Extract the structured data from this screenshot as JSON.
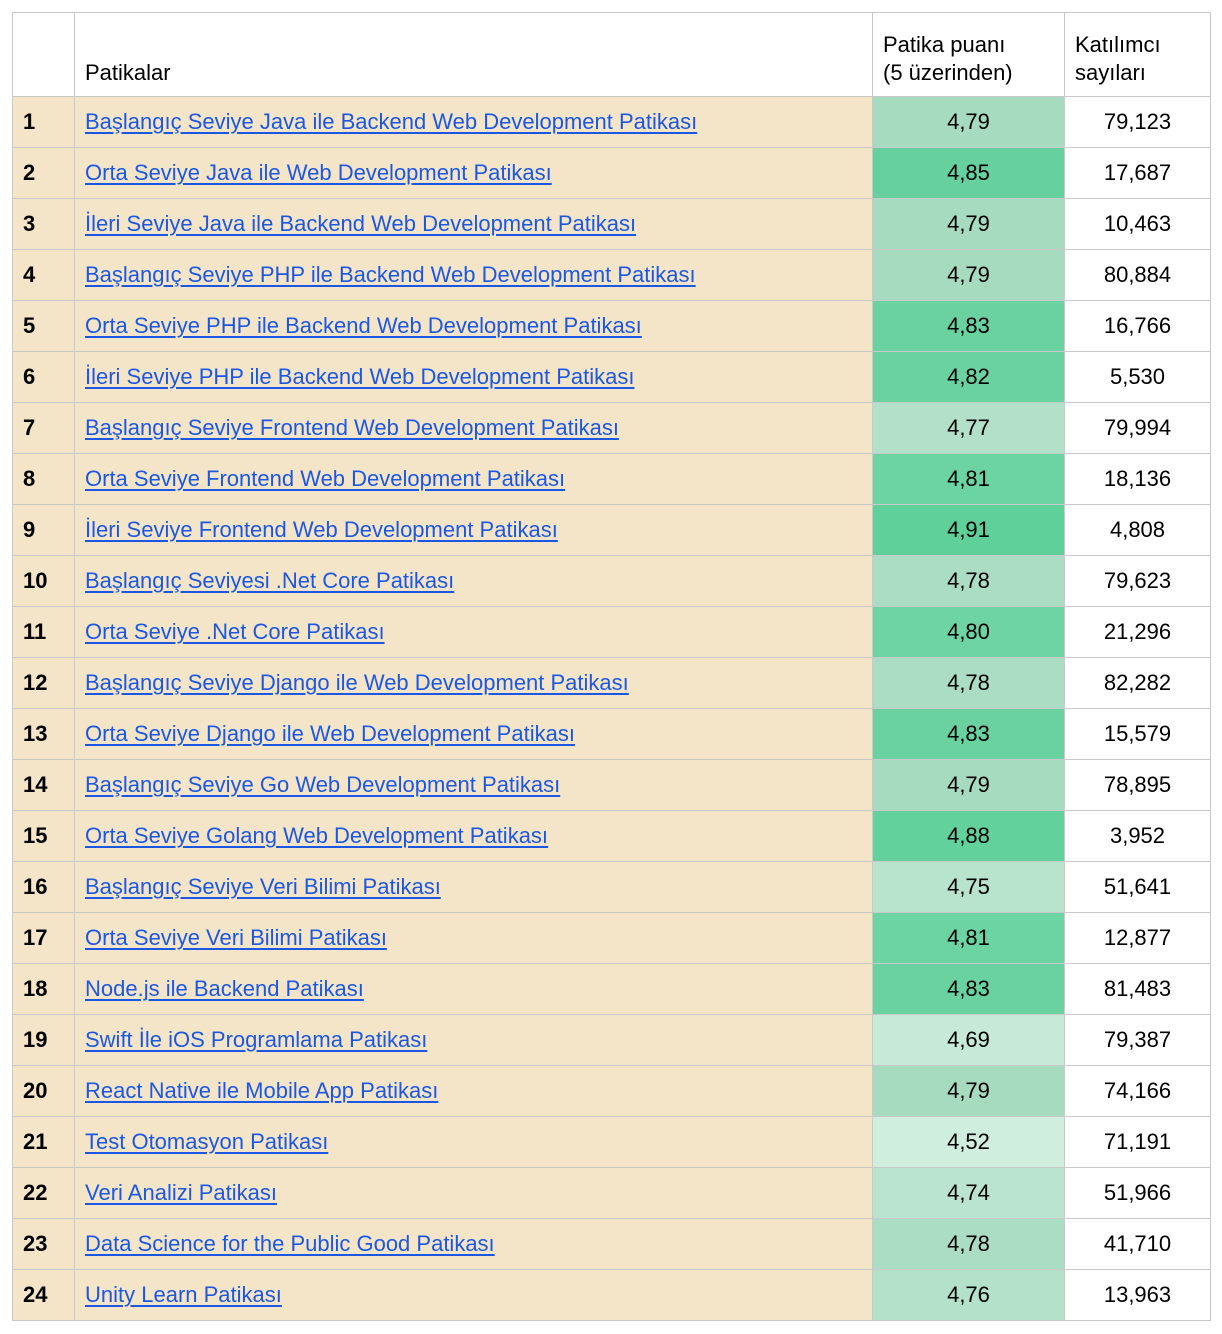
{
  "colors": {
    "row_bg": "#f5e5c8",
    "link_color": "#1b57e2",
    "border": "#c9c9c9",
    "score_scale_min": "#cfeede",
    "score_scale_max": "#5fd09a"
  },
  "table": {
    "headers": {
      "index": "",
      "path": "Patikalar",
      "score": "Patika puanı\n(5 üzerinden)",
      "participants": "Katılımcı\nsayıları"
    },
    "rows": [
      {
        "index": "1",
        "path": "Başlangıç Seviye Java ile Backend Web Development Patikası",
        "score": "4,79",
        "participants": "79,123",
        "score_bg": "#a7dbc0"
      },
      {
        "index": "2",
        "path": "Orta Seviye Java ile Web Development Patikası",
        "score": "4,85",
        "participants": "17,687",
        "score_bg": "#66d19e"
      },
      {
        "index": "3",
        "path": "İleri Seviye Java ile Backend Web Development Patikası",
        "score": "4,79",
        "participants": "10,463",
        "score_bg": "#a7dbc0"
      },
      {
        "index": "4",
        "path": "Başlangıç Seviye PHP ile Backend Web Development Patikası",
        "score": "4,79",
        "participants": "80,884",
        "score_bg": "#a7dbc0"
      },
      {
        "index": "5",
        "path": "Orta Seviye PHP ile Backend Web Development Patikası",
        "score": "4,83",
        "participants": "16,766",
        "score_bg": "#69d2a0"
      },
      {
        "index": "6",
        "path": "İleri Seviye PHP ile Backend Web Development Patikası",
        "score": "4,82",
        "participants": "5,530",
        "score_bg": "#6ad2a1"
      },
      {
        "index": "7",
        "path": "Başlangıç Seviye Frontend Web Development Patikası",
        "score": "4,77",
        "participants": "79,994",
        "score_bg": "#b2e0c9"
      },
      {
        "index": "8",
        "path": "Orta Seviye Frontend Web Development Patikası",
        "score": "4,81",
        "participants": "18,136",
        "score_bg": "#6cd3a2"
      },
      {
        "index": "9",
        "path": "İleri Seviye Frontend Web Development Patikası",
        "score": "4,91",
        "participants": "4,808",
        "score_bg": "#5fd09a"
      },
      {
        "index": "10",
        "path": "Başlangıç Seviyesi .Net Core Patikası",
        "score": "4,78",
        "participants": "79,623",
        "score_bg": "#abddc4"
      },
      {
        "index": "11",
        "path": "Orta Seviye .Net Core Patikası",
        "score": "4,80",
        "participants": "21,296",
        "score_bg": "#6ed4a4"
      },
      {
        "index": "12",
        "path": "Başlangıç Seviye Django ile Web Development Patikası",
        "score": "4,78",
        "participants": "82,282",
        "score_bg": "#abddc4"
      },
      {
        "index": "13",
        "path": "Orta Seviye Django ile Web Development Patikası",
        "score": "4,83",
        "participants": "15,579",
        "score_bg": "#69d2a0"
      },
      {
        "index": "14",
        "path": "Başlangıç Seviye Go Web Development Patikası",
        "score": "4,79",
        "participants": "78,895",
        "score_bg": "#a7dbc0"
      },
      {
        "index": "15",
        "path": "Orta Seviye Golang Web Development Patikası",
        "score": "4,88",
        "participants": "3,952",
        "score_bg": "#63d19c"
      },
      {
        "index": "16",
        "path": "Başlangıç Seviye Veri Bilimi Patikası",
        "score": "4,75",
        "participants": "51,641",
        "score_bg": "#b8e3cd"
      },
      {
        "index": "17",
        "path": "Orta Seviye Veri Bilimi Patikası",
        "score": "4,81",
        "participants": "12,877",
        "score_bg": "#6cd3a2"
      },
      {
        "index": "18",
        "path": "Node.js ile Backend Patikası",
        "score": "4,83",
        "participants": "81,483",
        "score_bg": "#69d2a0"
      },
      {
        "index": "19",
        "path": "Swift İle iOS Programlama Patikası",
        "score": "4,69",
        "participants": "79,387",
        "score_bg": "#c6ead7"
      },
      {
        "index": "20",
        "path": "React Native ile Mobile App Patikası",
        "score": "4,79",
        "participants": "74,166",
        "score_bg": "#a7dbc0"
      },
      {
        "index": "21",
        "path": "Test Otomasyon Patikası",
        "score": "4,52",
        "participants": "71,191",
        "score_bg": "#cfeede"
      },
      {
        "index": "22",
        "path": "Veri Analizi Patikası",
        "score": "4,74",
        "participants": "51,966",
        "score_bg": "#bae4cf"
      },
      {
        "index": "23",
        "path": "Data Science for the Public Good Patikası",
        "score": "4,78",
        "participants": "41,710",
        "score_bg": "#abddc4"
      },
      {
        "index": "24",
        "path": "Unity Learn Patikası",
        "score": "4,76",
        "participants": "13,963",
        "score_bg": "#b3e1ca"
      }
    ]
  }
}
